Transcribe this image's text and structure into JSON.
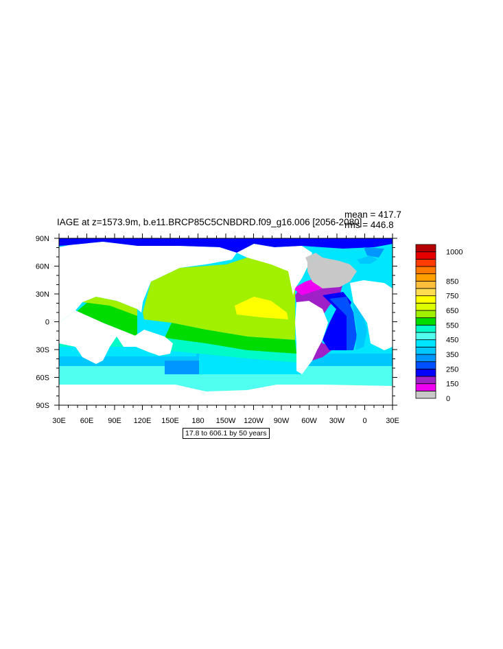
{
  "plot": {
    "title": "IAGE at z=1573.9m, b.e11.BRCP85C5CNBDRD.f09_g16.006 [2056-2080]",
    "mean_label": "mean = 417.7",
    "rms_label": "rms = 446.8",
    "contour_info": "17.8 to 606.1 by 50 years"
  },
  "axes": {
    "lon_labels": [
      "30E",
      "60E",
      "90E",
      "120E",
      "150E",
      "180",
      "150W",
      "120W",
      "90W",
      "60W",
      "30W",
      "0",
      "30E"
    ],
    "lat_labels": [
      "90N",
      "60N",
      "30N",
      "0",
      "30S",
      "60S",
      "90S"
    ]
  },
  "colorbar": {
    "colors": [
      "#c8c8c8",
      "#f000f0",
      "#a020c8",
      "#0000ff",
      "#0050ff",
      "#0096ff",
      "#00c8ff",
      "#00e6ff",
      "#50fff0",
      "#00fac8",
      "#00dc00",
      "#a0f000",
      "#dcff00",
      "#ffff00",
      "#ffdc50",
      "#ffbe3c",
      "#ffa000",
      "#ff7800",
      "#ff3c00",
      "#e60000",
      "#b40000"
    ],
    "labels": [
      "0",
      "150",
      "250",
      "350",
      "450",
      "550",
      "650",
      "750",
      "850",
      "1000"
    ],
    "label_positions": [
      0,
      2,
      4,
      6,
      8,
      10,
      12,
      14,
      16,
      20
    ]
  },
  "colors": {
    "land": "#ffffff",
    "ice_gray": "#c8c8c8"
  }
}
